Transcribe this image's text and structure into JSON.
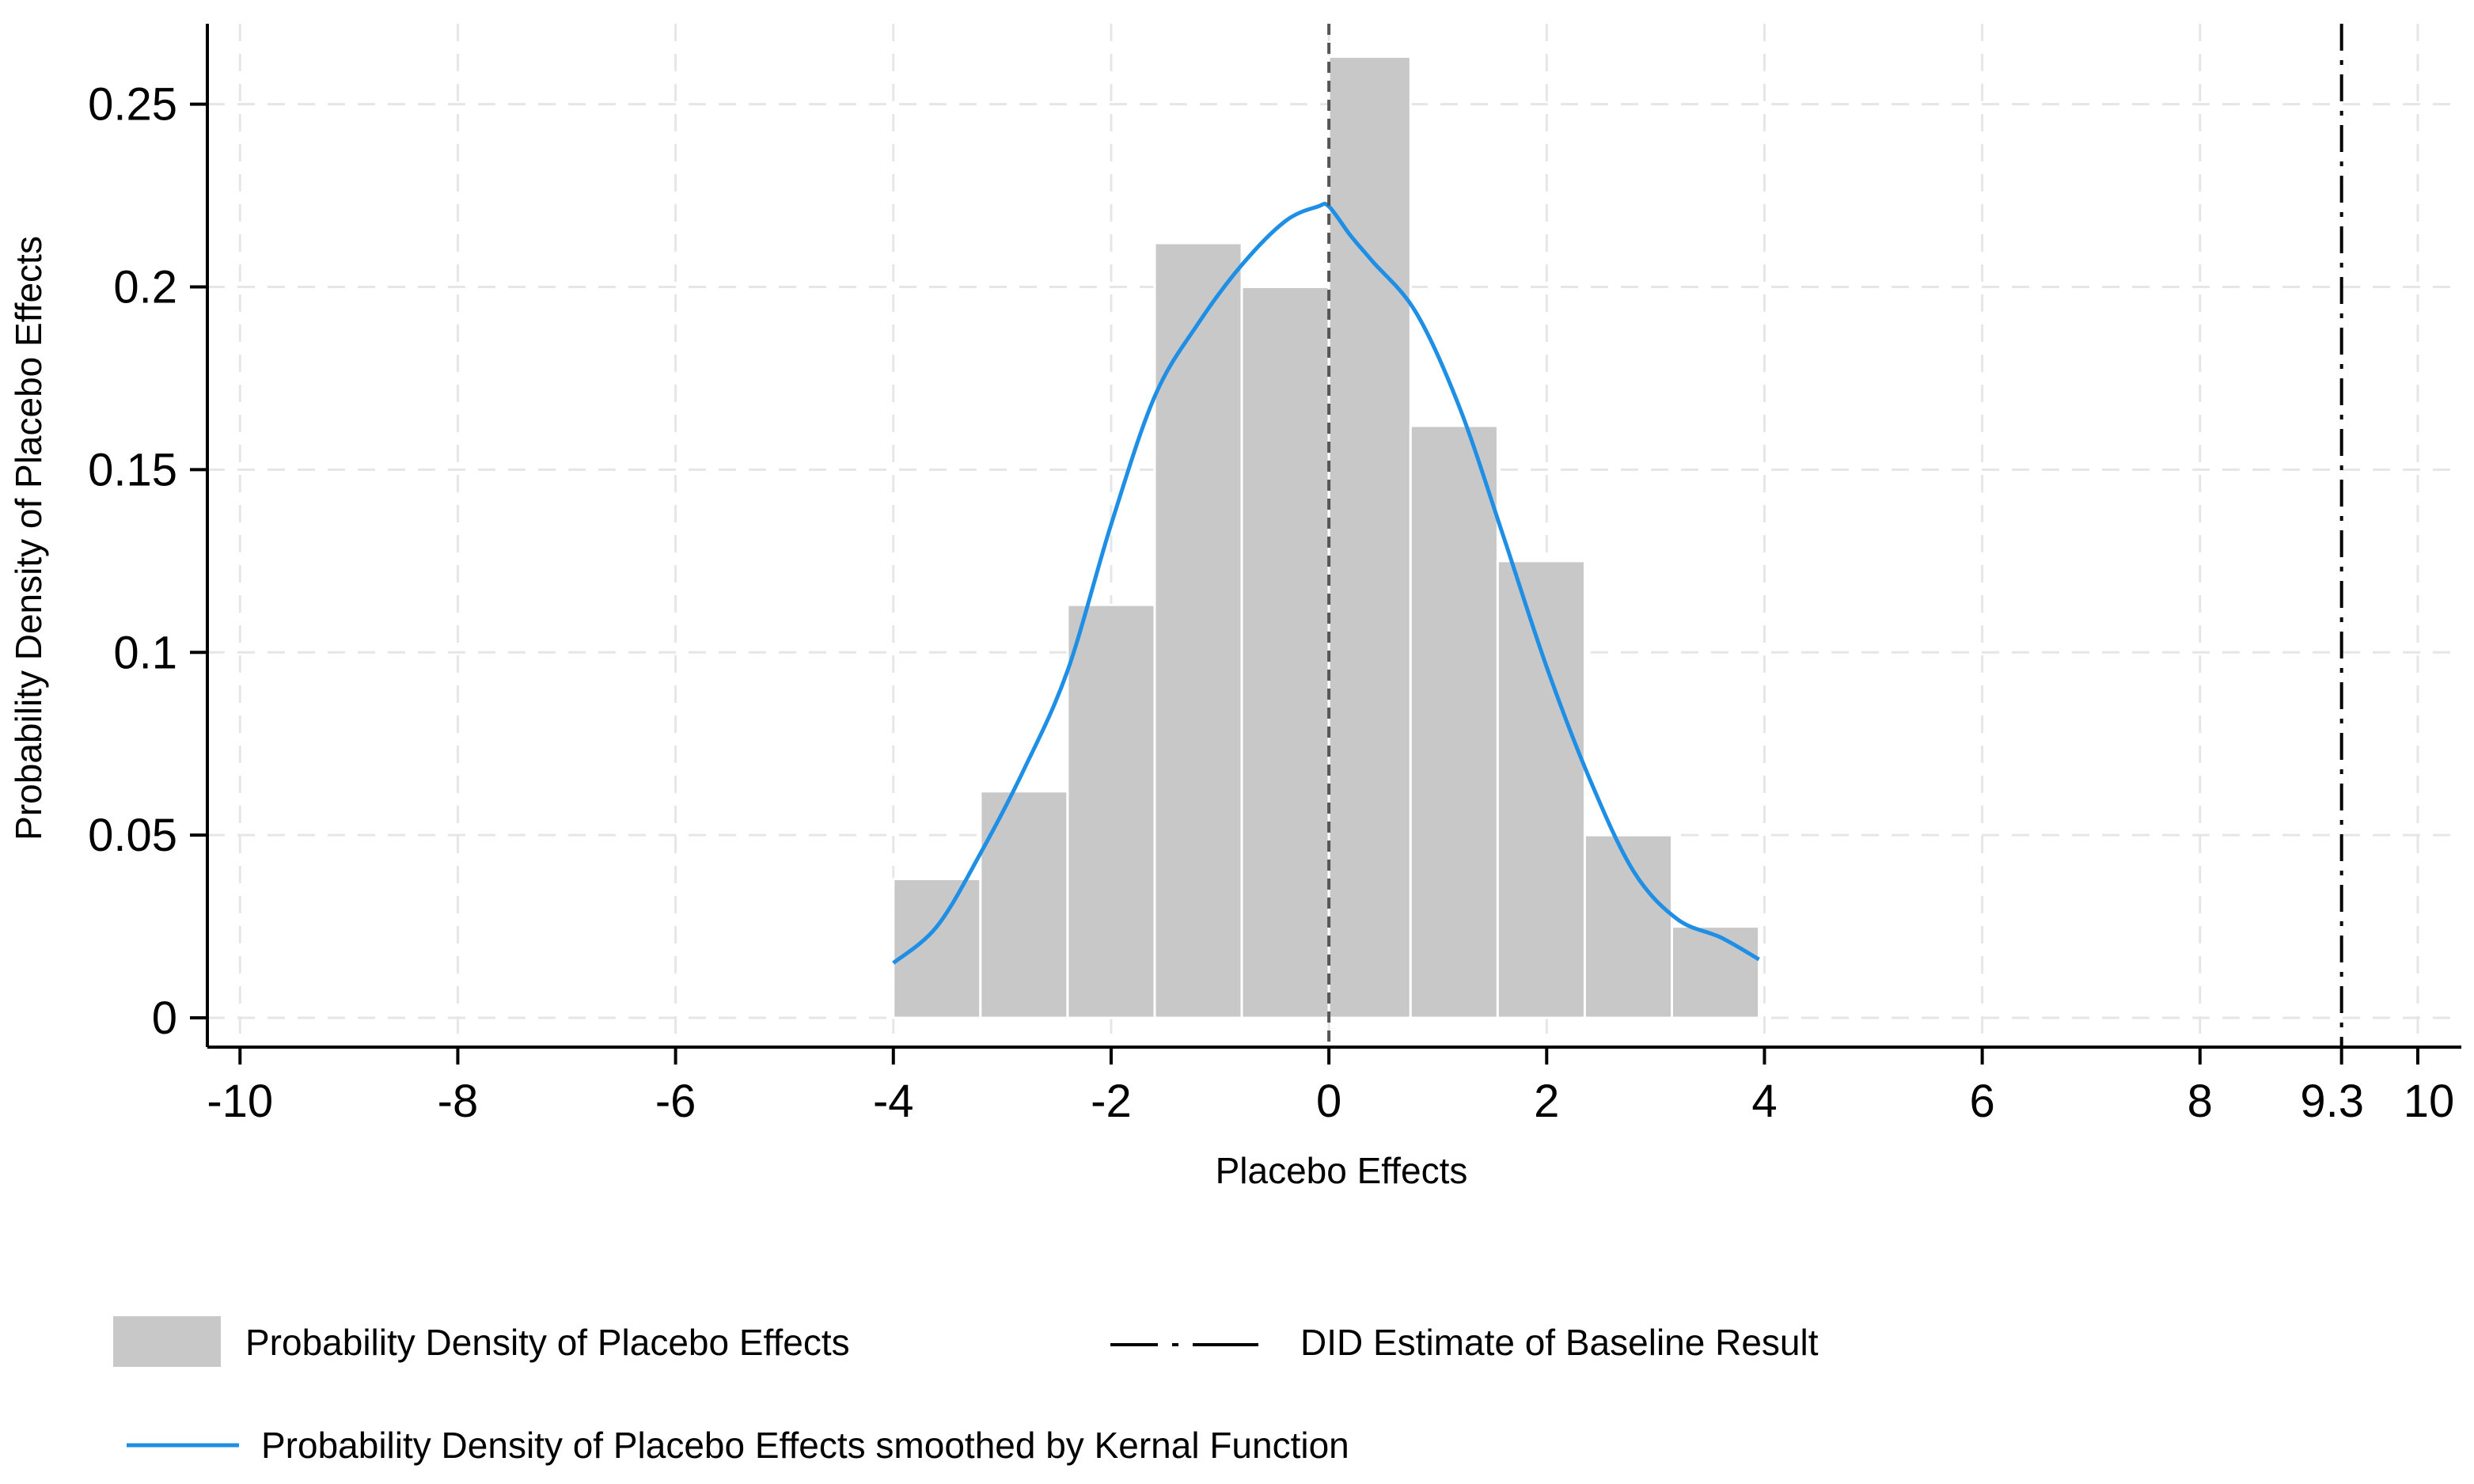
{
  "chart_data": {
    "type": "bar",
    "title": "",
    "xlabel": "Placebo Effects",
    "ylabel": "Probability Density of Placebo Effects",
    "xlim": [
      -10.3,
      10.4
    ],
    "ylim": [
      -0.008,
      0.272
    ],
    "xticks": [
      -10,
      -8,
      -6,
      -4,
      -2,
      0,
      2,
      4,
      6,
      8,
      9.3,
      10
    ],
    "xtick_labels": [
      "-10",
      "-8",
      "-6",
      "-4",
      "-2",
      "0",
      "2",
      "4",
      "6",
      "8",
      "9.3",
      "10"
    ],
    "yticks": [
      0,
      0.05,
      0.1,
      0.15,
      0.2,
      0.25
    ],
    "ytick_labels": [
      "0",
      "0.05",
      "0.1",
      "0.15",
      "0.2",
      "0.25"
    ],
    "grid": true,
    "histogram": {
      "name": "Probability Density of Placebo Effects",
      "color": "#c8c8c8",
      "bins": [
        {
          "x0": -4.0,
          "x1": -3.2,
          "value": 0.038
        },
        {
          "x0": -3.2,
          "x1": -2.4,
          "value": 0.062
        },
        {
          "x0": -2.4,
          "x1": -1.6,
          "value": 0.113
        },
        {
          "x0": -1.6,
          "x1": -0.8,
          "value": 0.212
        },
        {
          "x0": -0.8,
          "x1": 0.0,
          "value": 0.2
        },
        {
          "x0": 0.0,
          "x1": 0.75,
          "value": 0.263
        },
        {
          "x0": 0.75,
          "x1": 1.55,
          "value": 0.162
        },
        {
          "x0": 1.55,
          "x1": 2.35,
          "value": 0.125
        },
        {
          "x0": 2.35,
          "x1": 3.15,
          "value": 0.05
        },
        {
          "x0": 3.15,
          "x1": 3.95,
          "value": 0.025
        }
      ]
    },
    "kde": {
      "name": "Probability Density of Placebo Effects smoothed by Kernal Function",
      "color": "#1f8fe6",
      "x": [
        -4.0,
        -3.6,
        -3.2,
        -2.8,
        -2.4,
        -2.0,
        -1.6,
        -1.2,
        -0.8,
        -0.4,
        -0.1,
        0.0,
        0.2,
        0.4,
        0.8,
        1.2,
        1.6,
        2.0,
        2.4,
        2.8,
        3.2,
        3.6,
        3.95
      ],
      "y": [
        0.015,
        0.025,
        0.045,
        0.068,
        0.095,
        0.135,
        0.17,
        0.19,
        0.206,
        0.218,
        0.222,
        0.222,
        0.214,
        0.207,
        0.193,
        0.167,
        0.132,
        0.096,
        0.065,
        0.04,
        0.027,
        0.022,
        0.016
      ]
    },
    "reference_lines": [
      {
        "x": 0,
        "style": "dashed",
        "color": "#555555"
      },
      {
        "x": 9.3,
        "style": "dashdot",
        "color": "#000000",
        "name": "DID Estimate of Baseline Result"
      }
    ],
    "legend": {
      "position": "bottom",
      "items": [
        {
          "label": "Probability Density of Placebo Effects",
          "kind": "box"
        },
        {
          "label": "DID Estimate of Baseline Result",
          "kind": "dashdot"
        },
        {
          "label": "Probability Density of Placebo Effects smoothed by Kernal Function",
          "kind": "line"
        }
      ]
    }
  }
}
